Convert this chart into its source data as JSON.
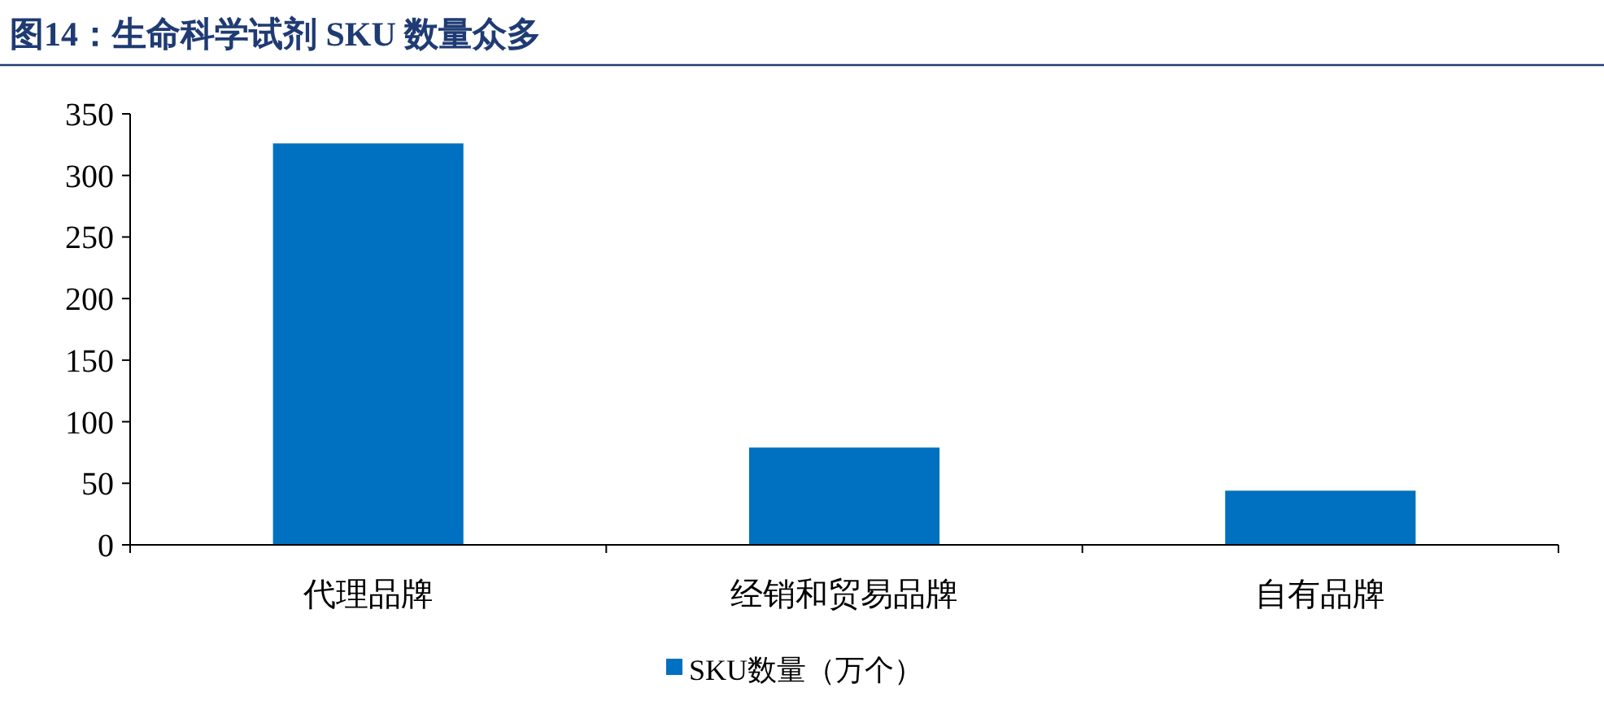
{
  "chart_data": {
    "type": "bar",
    "title": "图14：生命科学试剂 SKU 数量众多",
    "categories": [
      "代理品牌",
      "经销和贸易品牌",
      "自有品牌"
    ],
    "series": [
      {
        "name": "SKU数量（万个）",
        "color": "#0070c0",
        "values": [
          326,
          79,
          44
        ]
      }
    ],
    "ylim": [
      0,
      350
    ],
    "yticks": [
      0,
      50,
      100,
      150,
      200,
      250,
      300,
      350
    ],
    "grid": false,
    "legend": "bottom"
  }
}
